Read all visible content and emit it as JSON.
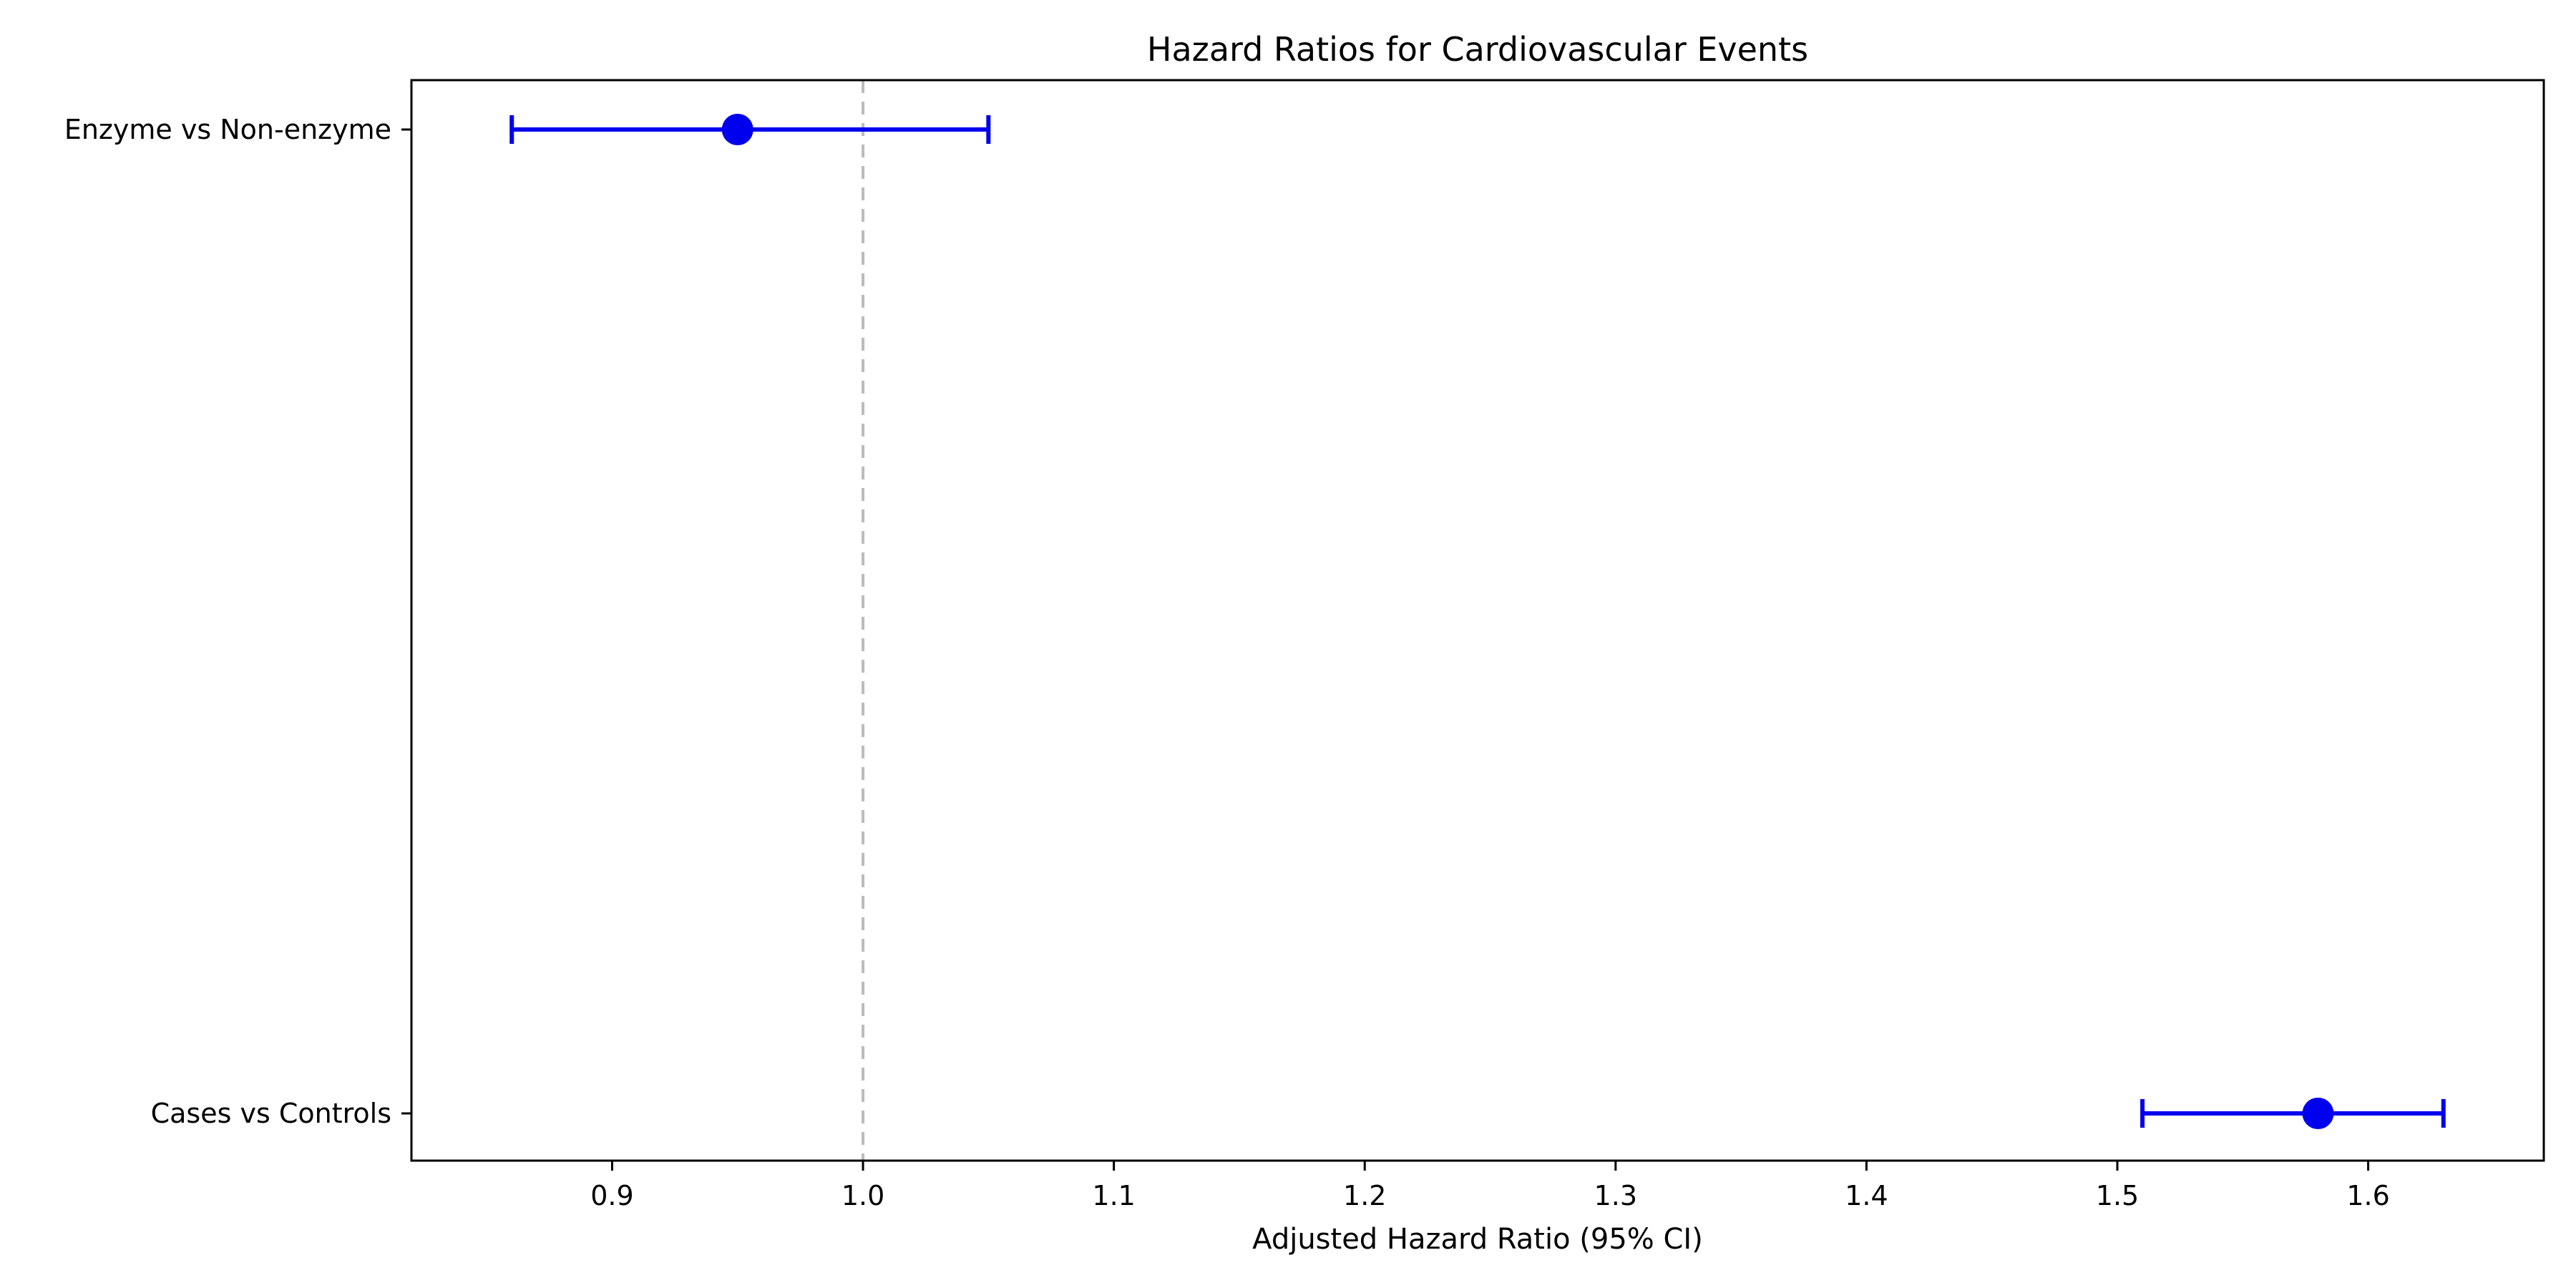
{
  "chart_data": {
    "type": "forest",
    "title": "Hazard Ratios for Cardiovascular Events",
    "xlabel": "Adjusted Hazard Ratio (95% CI)",
    "ylabel": "",
    "xlim": [
      0.82,
      1.67
    ],
    "xticks": [
      0.9,
      1.0,
      1.1,
      1.2,
      1.3,
      1.4,
      1.5,
      1.6
    ],
    "xtick_labels": [
      "0.9",
      "1.0",
      "1.1",
      "1.2",
      "1.3",
      "1.4",
      "1.5",
      "1.6"
    ],
    "reference_line": {
      "x": 1.0,
      "style": "dashed",
      "color": "#bbbbbb"
    },
    "grid": false,
    "point_color": "#0000ee",
    "categories": [
      "Enzyme vs Non-enzyme",
      "Cases vs Controls"
    ],
    "estimates": [
      {
        "label": "Enzyme vs Non-enzyme",
        "hr": 0.95,
        "ci_lower": 0.86,
        "ci_upper": 1.05
      },
      {
        "label": "Cases vs Controls",
        "hr": 1.58,
        "ci_lower": 1.51,
        "ci_upper": 1.63
      }
    ]
  }
}
